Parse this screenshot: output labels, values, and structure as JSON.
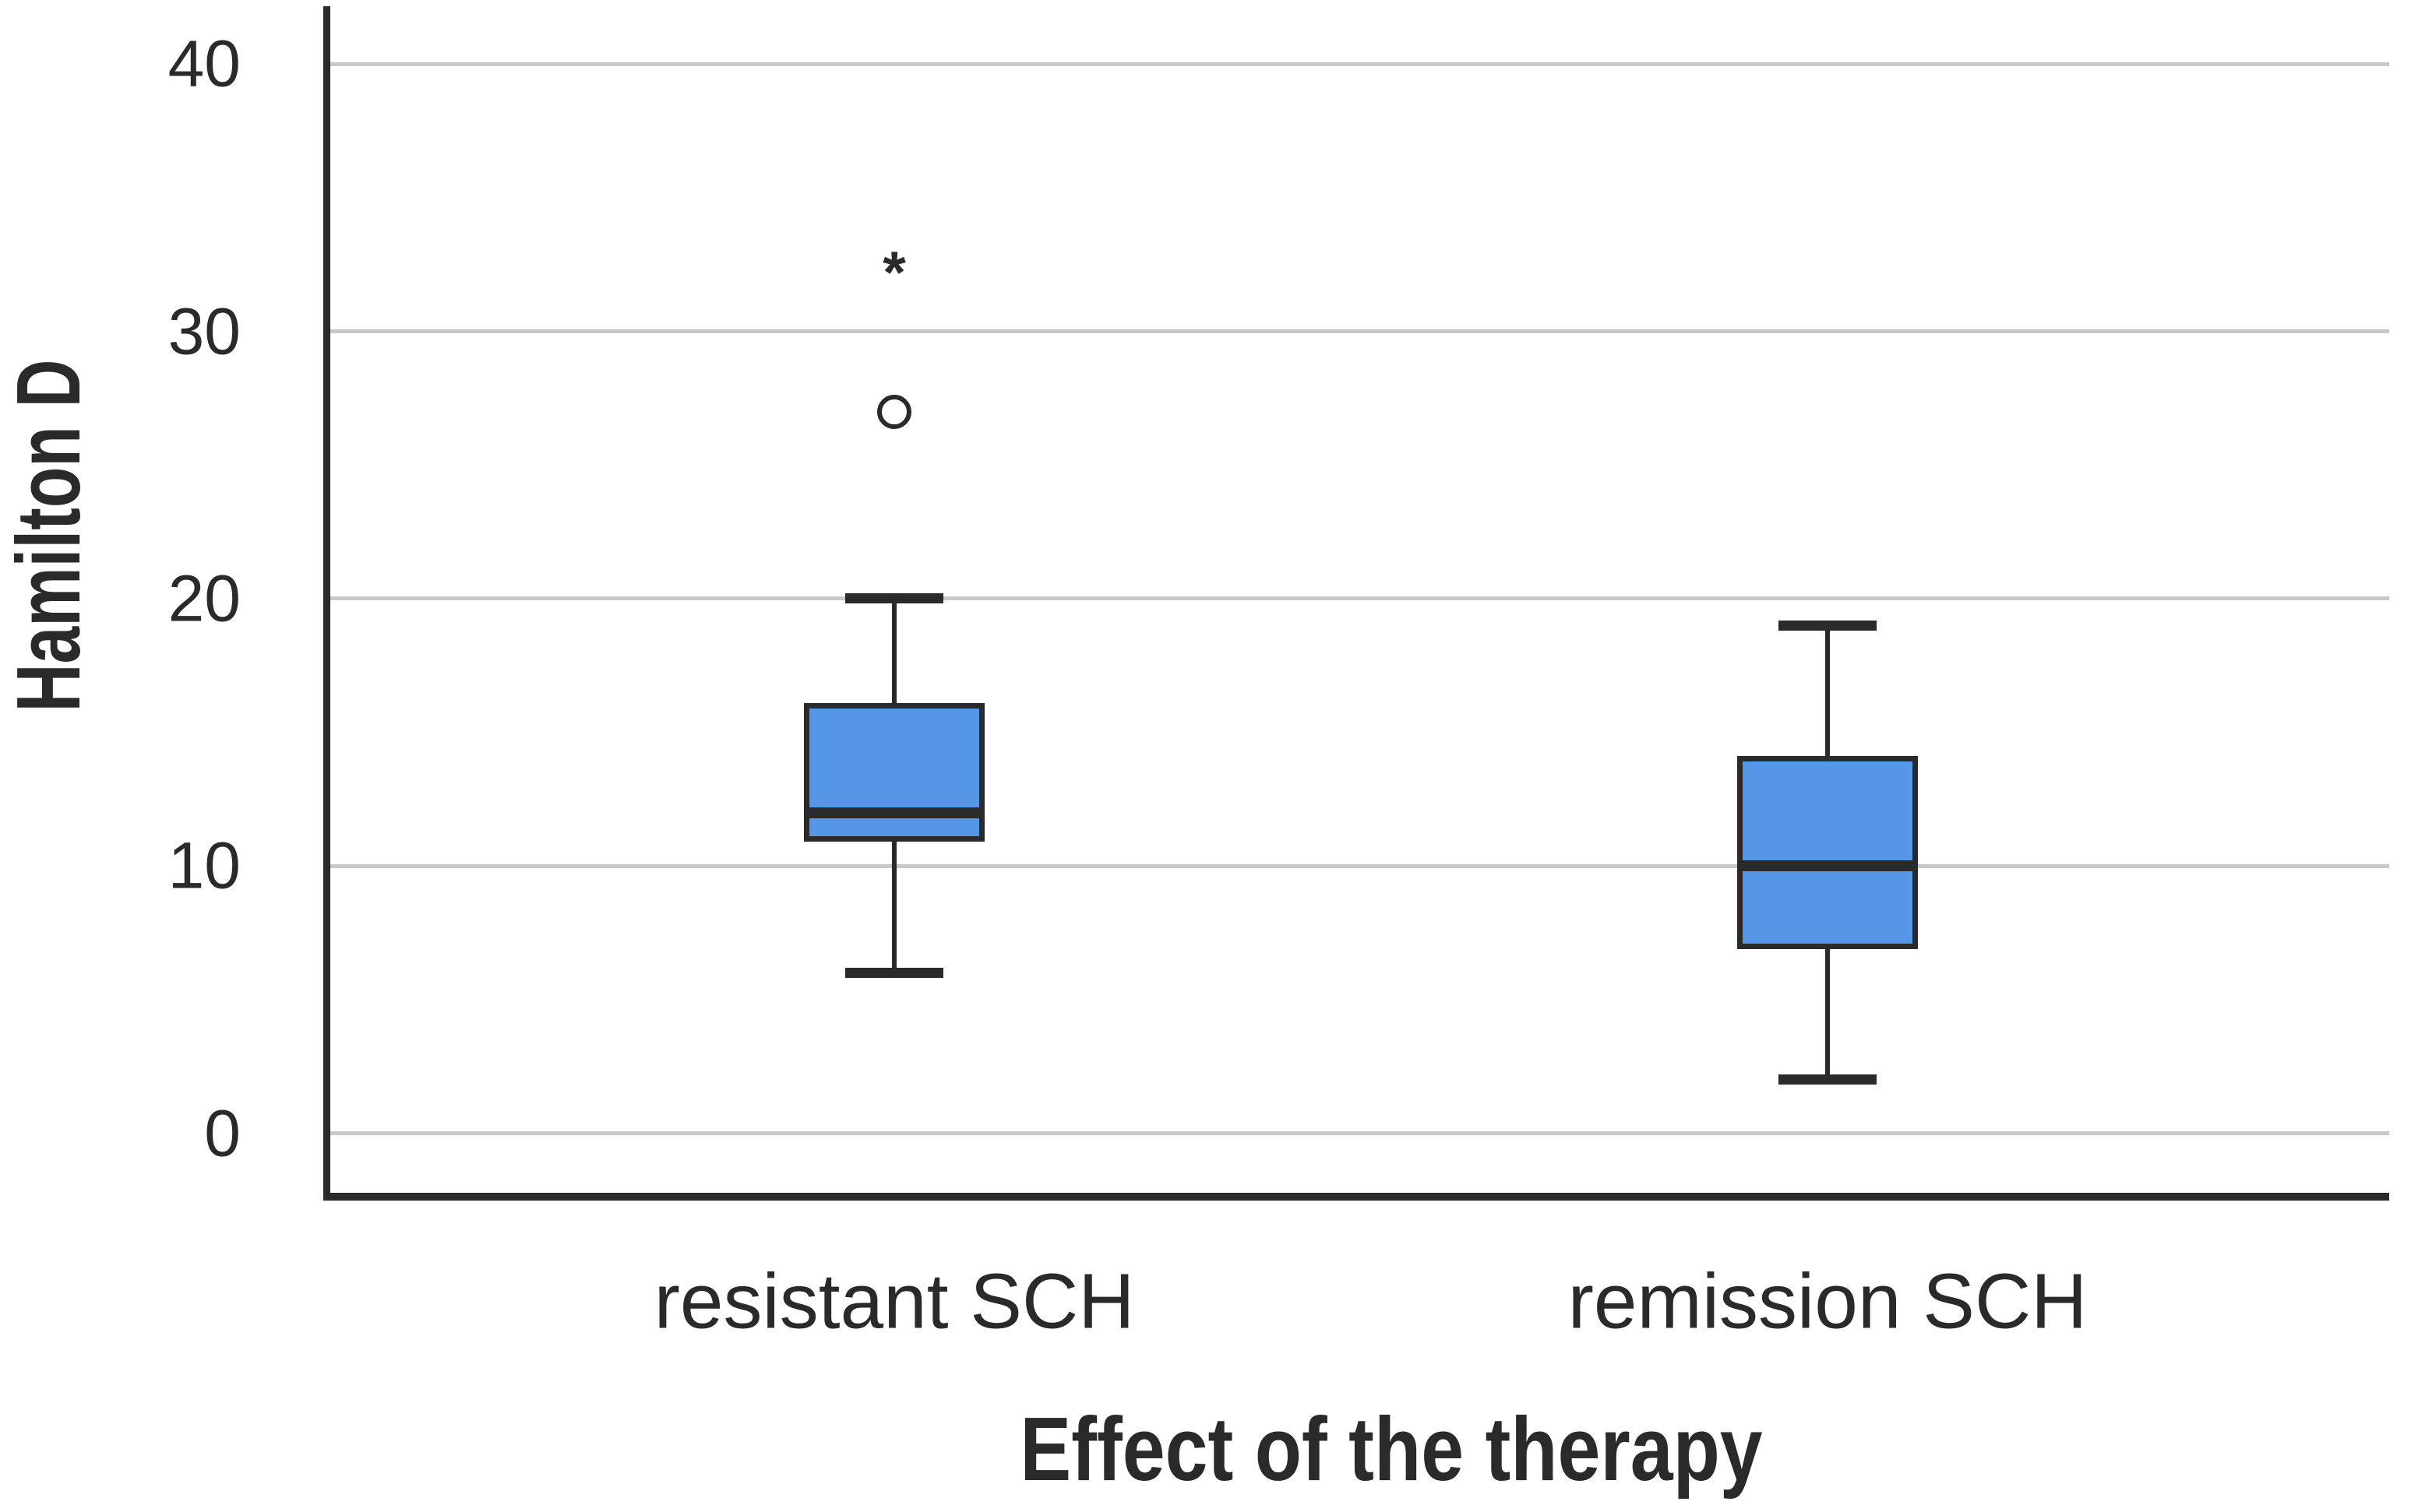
{
  "chart_data": {
    "type": "boxplot",
    "title": "",
    "xlabel": "Effect of the therapy",
    "ylabel": "Hamilton D",
    "categories": [
      "resistant SCH",
      "remission SCH"
    ],
    "y_ticks": [
      0,
      10,
      20,
      30,
      40
    ],
    "ylim": [
      -2.4,
      42.2
    ],
    "grid": "horizontal gridlines at every y tick, full plot width",
    "legend": "none",
    "series": [
      {
        "category": "resistant SCH",
        "whisker_low": 6,
        "q1": 11,
        "median": 12,
        "q3": 16,
        "whisker_high": 20,
        "outliers": [
          27
        ],
        "extremes": [
          32
        ]
      },
      {
        "category": "remission SCH",
        "whisker_low": 2,
        "q1": 7,
        "median": 10,
        "q3": 14,
        "whisker_high": 19,
        "outliers": [],
        "extremes": []
      }
    ],
    "markers": {
      "outlier": "circle",
      "extreme": "asterisk",
      "extreme_glyph": "*"
    },
    "colors": {
      "box_fill": "#5596e6",
      "line": "#2a2a2a",
      "grid": "#c8c8c8",
      "text": "#2a2a2a",
      "background": "#ffffff"
    }
  }
}
